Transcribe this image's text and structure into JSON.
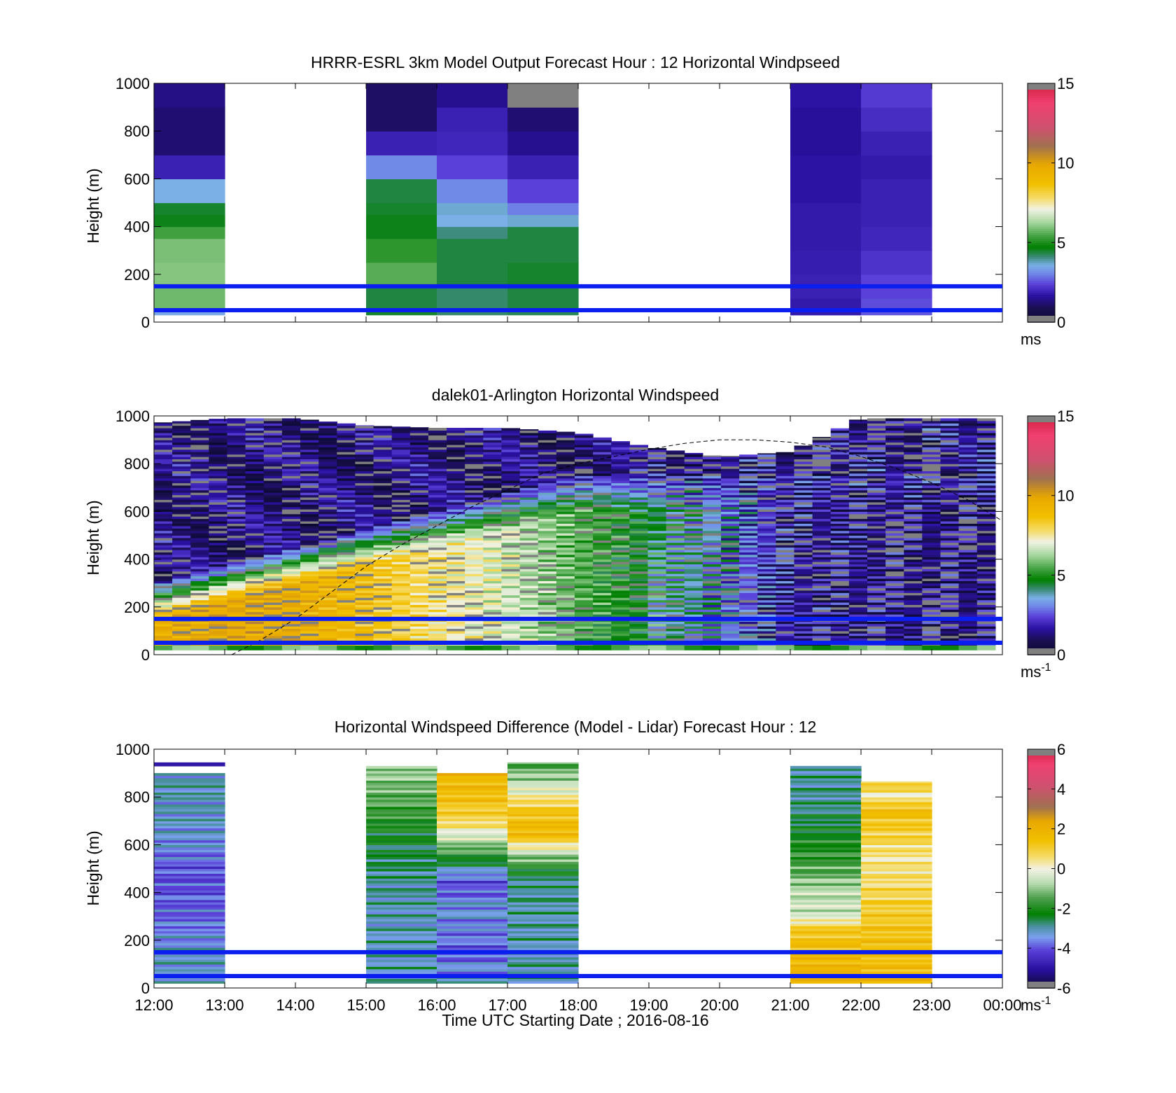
{
  "chart_data": [
    {
      "type": "heatmap",
      "title": "HRRR-ESRL 3km Model Output   Forecast Hour : 12 Horizontal Windpseed",
      "ylabel": "Height (m)",
      "ylim": [
        0,
        1000
      ],
      "xlim": [
        12,
        24
      ],
      "yticks": [
        "0",
        "200",
        "400",
        "600",
        "800",
        "1000"
      ],
      "colorbar": {
        "range": [
          0,
          15
        ],
        "ticks": [
          "0",
          "5",
          "10",
          "15"
        ],
        "unit": "ms",
        "unit_sup": ""
      },
      "reference_lines_m": [
        50,
        150
      ],
      "columns": [
        {
          "x0": 12,
          "x1": 13,
          "cells": [
            [
              30,
              50,
              3.5
            ],
            [
              50,
              150,
              5.8
            ],
            [
              150,
              250,
              6.0
            ],
            [
              250,
              350,
              5.9
            ],
            [
              350,
              400,
              5.4
            ],
            [
              400,
              450,
              4.6
            ],
            [
              450,
              500,
              4.5
            ],
            [
              500,
              600,
              3.6
            ],
            [
              600,
              700,
              1.9
            ],
            [
              700,
              900,
              1.2
            ],
            [
              900,
              1000,
              1.4
            ]
          ]
        },
        {
          "x0": 15,
          "x1": 16,
          "cells": [
            [
              30,
              50,
              4.5
            ],
            [
              50,
              150,
              4.4
            ],
            [
              150,
              250,
              5.6
            ],
            [
              250,
              350,
              5.2
            ],
            [
              350,
              450,
              4.6
            ],
            [
              450,
              500,
              4.5
            ],
            [
              500,
              600,
              4.4
            ],
            [
              600,
              700,
              3.1
            ],
            [
              700,
              800,
              1.9
            ],
            [
              800,
              1000,
              1.1
            ]
          ]
        },
        {
          "x0": 16,
          "x1": 17,
          "cells": [
            [
              30,
              50,
              4.2
            ],
            [
              50,
              150,
              4.2
            ],
            [
              150,
              250,
              4.4
            ],
            [
              250,
              350,
              4.4
            ],
            [
              350,
              400,
              4.1
            ],
            [
              400,
              450,
              3.6
            ],
            [
              450,
              500,
              3.7
            ],
            [
              500,
              600,
              3.1
            ],
            [
              600,
              700,
              2.4
            ],
            [
              700,
              800,
              2.0
            ],
            [
              800,
              900,
              1.9
            ],
            [
              900,
              1000,
              1.5
            ]
          ]
        },
        {
          "x0": 17,
          "x1": 18,
          "cells": [
            [
              30,
              50,
              4.3
            ],
            [
              50,
              150,
              4.4
            ],
            [
              150,
              250,
              4.5
            ],
            [
              250,
              400,
              4.4
            ],
            [
              400,
              450,
              3.7
            ],
            [
              450,
              500,
              3.0
            ],
            [
              500,
              600,
              2.4
            ],
            [
              600,
              700,
              1.9
            ],
            [
              700,
              800,
              1.5
            ],
            [
              800,
              900,
              1.2
            ],
            [
              900,
              1000,
              -1
            ]
          ]
        },
        {
          "x0": 21,
          "x1": 22,
          "cells": [
            [
              30,
              100,
              1.8
            ],
            [
              100,
              200,
              1.9
            ],
            [
              200,
              300,
              1.85
            ],
            [
              300,
              500,
              1.8
            ],
            [
              500,
              700,
              1.7
            ],
            [
              700,
              900,
              1.6
            ],
            [
              900,
              1000,
              1.7
            ]
          ]
        },
        {
          "x0": 22,
          "x1": 23,
          "cells": [
            [
              30,
              60,
              2.6
            ],
            [
              60,
              100,
              2.5
            ],
            [
              100,
              200,
              2.4
            ],
            [
              200,
              300,
              2.2
            ],
            [
              300,
              400,
              2.0
            ],
            [
              400,
              600,
              1.9
            ],
            [
              600,
              700,
              1.8
            ],
            [
              700,
              800,
              1.9
            ],
            [
              800,
              900,
              2.1
            ],
            [
              900,
              1000,
              2.3
            ]
          ]
        }
      ]
    },
    {
      "type": "heatmap",
      "title": "dalek01-Arlington  Horizontal Windspeed",
      "ylabel": "Height (m)",
      "ylim": [
        0,
        1000
      ],
      "xlim": [
        12,
        24
      ],
      "yticks": [
        "0",
        "200",
        "400",
        "600",
        "800",
        "1000"
      ],
      "colorbar": {
        "range": [
          0,
          15
        ],
        "ticks": [
          "0",
          "5",
          "10",
          "15"
        ],
        "unit": "ms",
        "unit_sup": "-1"
      },
      "reference_lines_m": [
        50,
        150
      ],
      "boundary_layer_curve": {
        "x": [
          13.1,
          13.5,
          14,
          14.5,
          15,
          15.5,
          16,
          16.5,
          17,
          17.5,
          18,
          18.5,
          19,
          19.5,
          20,
          20.5,
          21,
          21.5,
          22,
          22.5,
          23,
          23.5,
          24
        ],
        "y": [
          0,
          60,
          150,
          260,
          370,
          460,
          540,
          620,
          690,
          760,
          800,
          830,
          860,
          885,
          900,
          900,
          890,
          870,
          830,
          780,
          720,
          650,
          560
        ]
      },
      "profile": {
        "x_start": 12,
        "x_end": 23.9,
        "n_columns": 46,
        "bottom_m": 20,
        "low_level_hours": [
          12,
          13,
          14,
          15,
          16,
          17,
          18,
          19,
          20,
          21,
          22,
          23,
          24
        ],
        "low_level_speed": [
          9.5,
          9.8,
          9.6,
          8.8,
          7.6,
          6.8,
          5.6,
          4.6,
          3.4,
          1.6,
          1.4,
          1.2,
          1.2
        ],
        "top_hours": [
          12,
          13,
          14,
          15,
          16,
          17,
          18,
          19,
          20,
          21,
          22,
          23,
          24
        ],
        "top_m": [
          970,
          990,
          990,
          960,
          950,
          950,
          930,
          870,
          830,
          850,
          990,
          990,
          990
        ]
      }
    },
    {
      "type": "heatmap",
      "title": "Horizontal Windspeed Difference (Model - Lidar) Forecast Hour : 12",
      "ylabel": "Height (m)",
      "xlabel": "Time UTC  Starting Date ; 2016-08-16",
      "ylim": [
        0,
        1000
      ],
      "xlim": [
        12,
        24
      ],
      "yticks": [
        "0",
        "200",
        "400",
        "600",
        "800",
        "1000"
      ],
      "xticks": [
        "12:00",
        "13:00",
        "14:00",
        "15:00",
        "16:00",
        "17:00",
        "18:00",
        "19:00",
        "20:00",
        "21:00",
        "22:00",
        "23:00",
        "00:00"
      ],
      "colorbar": {
        "range": [
          -6,
          6
        ],
        "ticks": [
          "-6",
          "-4",
          "-2",
          "0",
          "2",
          "4",
          "6"
        ],
        "unit": "ms",
        "unit_sup": "-1"
      },
      "reference_lines_m": [
        50,
        150
      ],
      "columns": [
        {
          "x0": 12,
          "x1": 13,
          "top_m": 900,
          "profile": {
            "h": [
              20,
              150,
              300,
              400,
              500,
              600,
              700,
              800,
              900
            ],
            "v": [
              -3.0,
              -3.3,
              -3.8,
              -4.0,
              -4.0,
              -3.4,
              -3.2,
              -3.1,
              -3.0
            ]
          },
          "extra": [
            [
              930,
              945,
              -4.9
            ]
          ]
        },
        {
          "x0": 15,
          "x1": 16,
          "top_m": 930,
          "profile": {
            "h": [
              20,
              150,
              300,
              450,
              600,
              750,
              930
            ],
            "v": [
              -3.1,
              -3.1,
              -3.1,
              -2.9,
              -2.4,
              -1.6,
              -0.8
            ]
          }
        },
        {
          "x0": 16,
          "x1": 17,
          "top_m": 900,
          "profile": {
            "h": [
              20,
              150,
              250,
              350,
              400,
              450,
              520,
              600,
              700,
              800,
              900
            ],
            "v": [
              -3.0,
              -3.9,
              -3.6,
              -3.3,
              -3.9,
              -4.0,
              -2.6,
              -1.0,
              0.8,
              1.5,
              1.8
            ]
          }
        },
        {
          "x0": 17,
          "x1": 18,
          "top_m": 945,
          "profile": {
            "h": [
              20,
              150,
              300,
              450,
              550,
              650,
              750,
              850,
              945
            ],
            "v": [
              -2.9,
              -3.0,
              -3.0,
              -2.8,
              -1.0,
              1.8,
              1.2,
              -0.5,
              -1.6
            ]
          }
        },
        {
          "x0": 21,
          "x1": 22,
          "top_m": 930,
          "profile": {
            "h": [
              20,
              150,
              250,
              300,
              400,
              500,
              600,
              700,
              800,
              930
            ],
            "v": [
              1.9,
              1.7,
              1.2,
              -0.4,
              -0.6,
              -1.5,
              -2.0,
              -2.5,
              -2.9,
              -2.9
            ]
          }
        },
        {
          "x0": 22,
          "x1": 23,
          "top_m": 865,
          "profile": {
            "h": [
              20,
              150,
              300,
              450,
              550,
              650,
              750,
              800,
              865
            ],
            "v": [
              1.6,
              1.5,
              1.2,
              0.6,
              0.4,
              1.0,
              1.6,
              0.2,
              1.2
            ]
          }
        }
      ]
    }
  ]
}
